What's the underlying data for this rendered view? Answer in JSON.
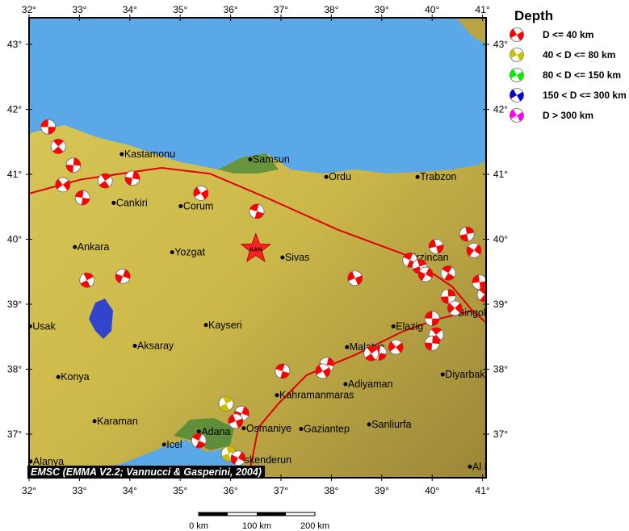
{
  "map": {
    "extent": {
      "lon": [
        32,
        41.1
      ],
      "lat": [
        36.35,
        43.45
      ]
    },
    "lon_ticks": [
      32,
      33,
      34,
      35,
      36,
      37,
      38,
      39,
      40,
      41
    ],
    "lat_ticks": [
      37,
      38,
      39,
      40,
      41,
      42,
      43
    ],
    "degree_symbol": "°",
    "colors": {
      "sea": "#5aa8e8",
      "land": "#c9b443",
      "lowland": "#4e8a3a",
      "fault": "#e00000",
      "lake": "#3344cc"
    },
    "star": {
      "label": "KAN",
      "lon": 36.5,
      "lat": 39.85,
      "color": "#ff2020"
    },
    "cities": [
      {
        "name": "Kastamonu",
        "lon": 33.84,
        "lat": 41.31
      },
      {
        "name": "Samsun",
        "lon": 36.39,
        "lat": 41.23
      },
      {
        "name": "Ordu",
        "lon": 37.9,
        "lat": 40.96
      },
      {
        "name": "Trabzon",
        "lon": 39.71,
        "lat": 40.96
      },
      {
        "name": "Cankiri",
        "lon": 33.68,
        "lat": 40.56
      },
      {
        "name": "Corum",
        "lon": 35.01,
        "lat": 40.51
      },
      {
        "name": "Ankara",
        "lon": 32.91,
        "lat": 39.88
      },
      {
        "name": "Yozgat",
        "lon": 34.84,
        "lat": 39.8
      },
      {
        "name": "Sivas",
        "lon": 37.03,
        "lat": 39.72
      },
      {
        "name": "Erzincan",
        "lon": 39.5,
        "lat": 39.72
      },
      {
        "name": "Usak",
        "lon": 32.02,
        "lat": 38.66
      },
      {
        "name": "Kayseri",
        "lon": 35.51,
        "lat": 38.68
      },
      {
        "name": "Aksaray",
        "lon": 34.1,
        "lat": 38.36
      },
      {
        "name": "Elazig",
        "lon": 39.23,
        "lat": 38.66
      },
      {
        "name": "Malatya",
        "lon": 38.31,
        "lat": 38.34
      },
      {
        "name": "Bingol",
        "lon": 40.46,
        "lat": 38.87
      },
      {
        "name": "Konya",
        "lon": 32.58,
        "lat": 37.88
      },
      {
        "name": "Adiyaman",
        "lon": 38.28,
        "lat": 37.77
      },
      {
        "name": "Diyarbakir",
        "lon": 40.21,
        "lat": 37.92
      },
      {
        "name": "Kahramanmaras",
        "lon": 36.92,
        "lat": 37.6
      },
      {
        "name": "Karaman",
        "lon": 33.3,
        "lat": 37.2
      },
      {
        "name": "Osmaniye",
        "lon": 36.26,
        "lat": 37.09
      },
      {
        "name": "Gaziantep",
        "lon": 37.4,
        "lat": 37.08
      },
      {
        "name": "Sanliurfa",
        "lon": 38.75,
        "lat": 37.15
      },
      {
        "name": "Adana",
        "lon": 35.37,
        "lat": 37.04
      },
      {
        "name": "Icel",
        "lon": 34.68,
        "lat": 36.84
      },
      {
        "name": "Iskenderun",
        "lon": 36.17,
        "lat": 36.6
      },
      {
        "name": "Alanya",
        "lon": 32.03,
        "lat": 36.58
      },
      {
        "name": "Al Hasakah",
        "lon": 40.75,
        "lat": 36.5
      }
    ],
    "faults": [
      [
        [
          31.98,
          40.7
        ],
        [
          33.03,
          40.92
        ],
        [
          34.63,
          41.1
        ],
        [
          35.59,
          41.01
        ],
        [
          36.71,
          40.64
        ],
        [
          38.15,
          40.14
        ],
        [
          39.44,
          39.77
        ],
        [
          40.4,
          39.27
        ],
        [
          40.8,
          38.9
        ],
        [
          41.08,
          38.71
        ]
      ],
      [
        [
          40.8,
          38.9
        ],
        [
          40.16,
          38.78
        ],
        [
          39.44,
          38.59
        ],
        [
          38.47,
          38.22
        ],
        [
          37.51,
          37.91
        ],
        [
          36.95,
          37.47
        ],
        [
          36.55,
          37.1
        ],
        [
          36.36,
          36.35
        ]
      ]
    ],
    "events": [
      {
        "lon": 32.38,
        "lat": 41.73,
        "depth_class": 0
      },
      {
        "lon": 32.58,
        "lat": 41.43,
        "depth_class": 0
      },
      {
        "lon": 32.88,
        "lat": 41.14,
        "depth_class": 0
      },
      {
        "lon": 32.67,
        "lat": 40.84,
        "depth_class": 0
      },
      {
        "lon": 33.06,
        "lat": 40.64,
        "depth_class": 0
      },
      {
        "lon": 33.51,
        "lat": 40.9,
        "depth_class": 0
      },
      {
        "lon": 34.05,
        "lat": 40.94,
        "depth_class": 0
      },
      {
        "lon": 35.41,
        "lat": 40.71,
        "depth_class": 0
      },
      {
        "lon": 36.52,
        "lat": 40.43,
        "depth_class": 0
      },
      {
        "lon": 33.15,
        "lat": 39.37,
        "depth_class": 0
      },
      {
        "lon": 33.86,
        "lat": 39.43,
        "depth_class": 0
      },
      {
        "lon": 38.47,
        "lat": 39.4,
        "depth_class": 0
      },
      {
        "lon": 39.56,
        "lat": 39.68,
        "depth_class": 0
      },
      {
        "lon": 39.75,
        "lat": 39.58,
        "depth_class": 0
      },
      {
        "lon": 39.87,
        "lat": 39.46,
        "depth_class": 0
      },
      {
        "lon": 40.08,
        "lat": 39.89,
        "depth_class": 0
      },
      {
        "lon": 40.32,
        "lat": 39.48,
        "depth_class": 0
      },
      {
        "lon": 40.69,
        "lat": 40.08,
        "depth_class": 0
      },
      {
        "lon": 40.83,
        "lat": 39.83,
        "depth_class": 0
      },
      {
        "lon": 40.94,
        "lat": 39.34,
        "depth_class": 0
      },
      {
        "lon": 41.04,
        "lat": 39.15,
        "depth_class": 0
      },
      {
        "lon": 40.32,
        "lat": 39.12,
        "depth_class": 0
      },
      {
        "lon": 40.45,
        "lat": 38.94,
        "depth_class": 0
      },
      {
        "lon": 40.0,
        "lat": 38.78,
        "depth_class": 0
      },
      {
        "lon": 40.08,
        "lat": 38.53,
        "depth_class": 0
      },
      {
        "lon": 40.0,
        "lat": 38.4,
        "depth_class": 0
      },
      {
        "lon": 39.28,
        "lat": 38.34,
        "depth_class": 0
      },
      {
        "lon": 38.95,
        "lat": 38.25,
        "depth_class": 0
      },
      {
        "lon": 38.79,
        "lat": 38.24,
        "depth_class": 0
      },
      {
        "lon": 37.91,
        "lat": 38.07,
        "depth_class": 0
      },
      {
        "lon": 37.83,
        "lat": 37.97,
        "depth_class": 0
      },
      {
        "lon": 37.03,
        "lat": 37.97,
        "depth_class": 0
      },
      {
        "lon": 35.91,
        "lat": 37.47,
        "depth_class": 1
      },
      {
        "lon": 36.22,
        "lat": 37.32,
        "depth_class": 0
      },
      {
        "lon": 36.1,
        "lat": 37.2,
        "depth_class": 0
      },
      {
        "lon": 35.37,
        "lat": 36.9,
        "depth_class": 0
      },
      {
        "lon": 35.96,
        "lat": 36.7,
        "depth_class": 1
      },
      {
        "lon": 36.15,
        "lat": 36.63,
        "depth_class": 0
      }
    ]
  },
  "legend": {
    "title": "Depth",
    "items": [
      {
        "label": "D <= 40 km",
        "color": "#ff0000"
      },
      {
        "label": "40 < D <= 80 km",
        "color": "#c8c000"
      },
      {
        "label": "80 < D <= 150 km",
        "color": "#00ee00"
      },
      {
        "label": "150 < D <= 300 km",
        "color": "#0000cc"
      },
      {
        "label": "D > 300 km",
        "color": "#ff00ff"
      }
    ]
  },
  "credit": "EMSC (EMMA V2.2; Vannucci & Gasperini, 2004)",
  "scale_bar": {
    "labels": [
      "0 km",
      "100 km",
      "200 km"
    ]
  }
}
